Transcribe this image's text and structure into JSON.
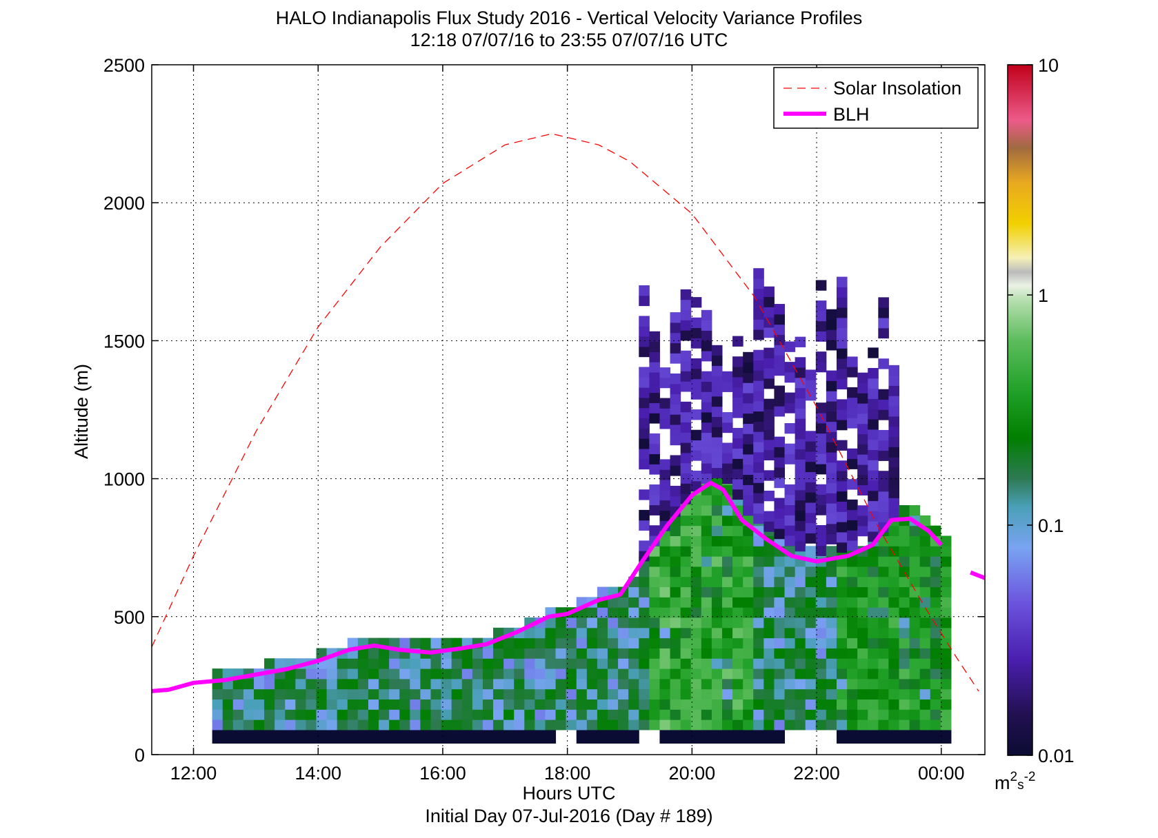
{
  "chart_data": {
    "type": "heatmap",
    "title": "HALO Indianapolis Flux Study 2016 - Vertical Velocity Variance Profiles",
    "subtitle": "12:18 07/07/16 to 23:55 07/07/16  UTC",
    "xlabel": "Hours UTC",
    "xlabel2": "Initial Day 07-Jul-2016 (Day # 189)",
    "ylabel": "Altitude (m)",
    "xlim": [
      11.33,
      24.7
    ],
    "ylim": [
      0,
      2500
    ],
    "x_ticks": [
      12,
      14,
      16,
      18,
      20,
      22,
      24
    ],
    "x_tick_labels": [
      "12:00",
      "14:00",
      "16:00",
      "18:00",
      "20:00",
      "22:00",
      "00:00"
    ],
    "y_ticks": [
      0,
      500,
      1000,
      1500,
      2000,
      2500
    ],
    "y_tick_labels": [
      "0",
      "500",
      "1000",
      "1500",
      "2000",
      "2500"
    ],
    "grid": true,
    "legend_position": "top-right",
    "colorbar": {
      "scale": "log",
      "range": [
        0.01,
        10
      ],
      "ticks": [
        0.01,
        0.1,
        1,
        10
      ],
      "tick_labels": [
        "0.01",
        "0.1",
        "1",
        "10"
      ],
      "unit_base": "m",
      "unit_exp1": "2",
      "unit_mid": "s",
      "unit_exp2": "-2"
    },
    "series": [
      {
        "name": "Solar Insolation",
        "style": "dashed",
        "color": "#ff0000",
        "x": [
          11.33,
          12.0,
          13.0,
          14.0,
          15.0,
          16.0,
          17.0,
          17.75,
          18.5,
          19.0,
          20.0,
          21.0,
          22.0,
          23.0,
          23.75,
          24.25,
          24.6
        ],
        "y": [
          390,
          720,
          1170,
          1550,
          1840,
          2070,
          2210,
          2250,
          2210,
          2150,
          1960,
          1660,
          1260,
          820,
          530,
          350,
          230
        ]
      },
      {
        "name": "BLH",
        "style": "solid",
        "color": "#ff00ff",
        "x": [
          11.33,
          11.6,
          12.0,
          12.5,
          13.0,
          13.5,
          14.0,
          14.5,
          14.9,
          15.3,
          15.8,
          16.3,
          16.7,
          17.2,
          17.7,
          18.0,
          18.5,
          18.85,
          19.2,
          19.6,
          20.0,
          20.3,
          20.5,
          20.8,
          21.2,
          21.6,
          22.0,
          22.5,
          22.9,
          23.2,
          23.5,
          23.8,
          24.0
        ],
        "y": [
          230,
          235,
          260,
          270,
          290,
          310,
          340,
          380,
          395,
          380,
          370,
          385,
          400,
          445,
          500,
          510,
          560,
          580,
          700,
          830,
          940,
          985,
          960,
          850,
          780,
          720,
          700,
          720,
          760,
          850,
          855,
          810,
          760
        ],
        "x2": [
          24.47,
          24.7
        ],
        "y2": [
          660,
          640
        ]
      }
    ],
    "heatmap_bins": {
      "time_step_h": 0.167,
      "altitude_step_m": 37,
      "description": "Vertical velocity variance profile bins (m2 s-2), log colour scale 0.01–10"
    }
  }
}
